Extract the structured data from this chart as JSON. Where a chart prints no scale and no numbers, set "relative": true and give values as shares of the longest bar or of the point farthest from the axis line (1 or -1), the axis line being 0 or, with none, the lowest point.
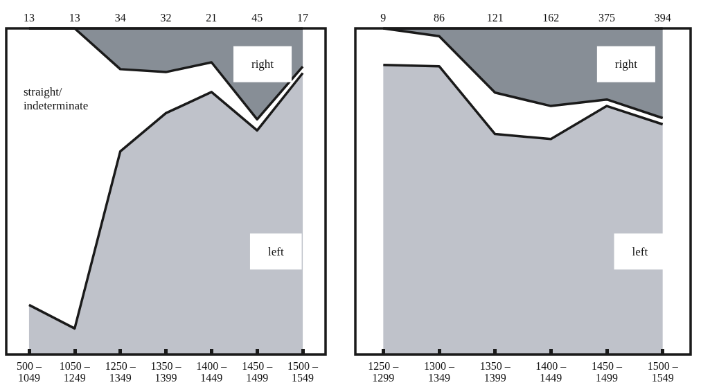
{
  "chart_data": [
    {
      "type": "area",
      "stacked": true,
      "relative": true,
      "categories": [
        "500 –\n1049",
        "1050 –\n1249",
        "1250 –\n1349",
        "1350 –\n1399",
        "1400 –\n1449",
        "1450 –\n1499",
        "1500 –\n1549"
      ],
      "series": [
        {
          "name": "left",
          "color": "#bfc2ca",
          "values": [
            0.152,
            0.08,
            0.623,
            0.74,
            0.805,
            0.687,
            0.863
          ]
        },
        {
          "name": "straight/\nindeterminate",
          "color": "#ffffff",
          "values": [
            0.848,
            0.92,
            0.252,
            0.126,
            0.091,
            0.034,
            0.02
          ]
        },
        {
          "name": "right",
          "color": "#878e96",
          "values": [
            0,
            0,
            0.125,
            0.134,
            0.104,
            0.279,
            0.117
          ]
        }
      ],
      "annotations": [
        "13",
        "13",
        "34",
        "32",
        "21",
        "45",
        "17"
      ]
    },
    {
      "type": "area",
      "stacked": true,
      "relative": true,
      "categories": [
        "1250 –\n1299",
        "1300 –\n1349",
        "1350 –\n1399",
        "1400 –\n1449",
        "1450 –\n1499",
        "1500 –\n1549"
      ],
      "series": [
        {
          "name": "left",
          "color": "#bfc2ca",
          "values": [
            0.888,
            0.884,
            0.676,
            0.661,
            0.762,
            0.706
          ]
        },
        {
          "color": "#ffffff",
          "values": [
            0.112,
            0.092,
            0.127,
            0.101,
            0.02,
            0.019
          ]
        },
        {
          "name": "right",
          "color": "#878e96",
          "values": [
            0,
            0.024,
            0.197,
            0.238,
            0.218,
            0.275
          ]
        }
      ],
      "annotations": [
        "9",
        "86",
        "121",
        "162",
        "375",
        "394"
      ]
    }
  ]
}
